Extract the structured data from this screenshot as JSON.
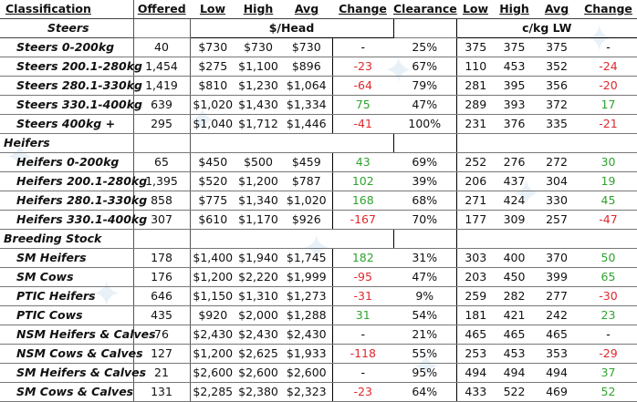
{
  "headers": [
    "Classification",
    "Offered",
    "Low",
    "High",
    "Avg",
    "Change",
    "Clearance",
    "Low",
    "High",
    "Avg",
    "Change"
  ],
  "units": {
    "head": "$/Head",
    "lw": "c/kg LW"
  },
  "sections": [
    {
      "title": "Steers",
      "rows": [
        {
          "name": "Steers 0-200kg",
          "offered": "40",
          "low": "$730",
          "high": "$730",
          "avg": "$730",
          "change": "-",
          "change_type": "dash",
          "clearance": "25%",
          "lw_low": "375",
          "lw_high": "375",
          "lw_avg": "375",
          "lw_change": "-",
          "lw_change_type": "dash"
        },
        {
          "name": "Steers 200.1-280kg",
          "offered": "1,454",
          "low": "$275",
          "high": "$1,100",
          "avg": "$896",
          "change": "-23",
          "change_type": "neg",
          "clearance": "67%",
          "lw_low": "110",
          "lw_high": "453",
          "lw_avg": "352",
          "lw_change": "-24",
          "lw_change_type": "neg"
        },
        {
          "name": "Steers 280.1-330kg",
          "offered": "1,419",
          "low": "$810",
          "high": "$1,230",
          "avg": "$1,064",
          "change": "-64",
          "change_type": "neg",
          "clearance": "79%",
          "lw_low": "281",
          "lw_high": "395",
          "lw_avg": "356",
          "lw_change": "-20",
          "lw_change_type": "neg"
        },
        {
          "name": "Steers 330.1-400kg",
          "offered": "639",
          "low": "$1,020",
          "high": "$1,430",
          "avg": "$1,334",
          "change": "75",
          "change_type": "pos",
          "clearance": "47%",
          "lw_low": "289",
          "lw_high": "393",
          "lw_avg": "372",
          "lw_change": "17",
          "lw_change_type": "pos"
        },
        {
          "name": "Steers 400kg +",
          "offered": "295",
          "low": "$1,040",
          "high": "$1,712",
          "avg": "$1,446",
          "change": "-41",
          "change_type": "neg",
          "clearance": "100%",
          "lw_low": "231",
          "lw_high": "376",
          "lw_avg": "335",
          "lw_change": "-21",
          "lw_change_type": "neg"
        }
      ]
    },
    {
      "title": "Heifers",
      "rows": [
        {
          "name": "Heifers 0-200kg",
          "offered": "65",
          "low": "$450",
          "high": "$500",
          "avg": "$459",
          "change": "43",
          "change_type": "pos",
          "clearance": "69%",
          "lw_low": "252",
          "lw_high": "276",
          "lw_avg": "272",
          "lw_change": "30",
          "lw_change_type": "pos"
        },
        {
          "name": "Heifers 200.1-280kg",
          "offered": "1,395",
          "low": "$520",
          "high": "$1,200",
          "avg": "$787",
          "change": "102",
          "change_type": "pos",
          "clearance": "39%",
          "lw_low": "206",
          "lw_high": "437",
          "lw_avg": "304",
          "lw_change": "19",
          "lw_change_type": "pos"
        },
        {
          "name": "Heifers 280.1-330kg",
          "offered": "858",
          "low": "$775",
          "high": "$1,340",
          "avg": "$1,020",
          "change": "168",
          "change_type": "pos",
          "clearance": "68%",
          "lw_low": "271",
          "lw_high": "424",
          "lw_avg": "330",
          "lw_change": "45",
          "lw_change_type": "pos"
        },
        {
          "name": "Heifers 330.1-400kg",
          "offered": "307",
          "low": "$610",
          "high": "$1,170",
          "avg": "$926",
          "change": "-167",
          "change_type": "neg",
          "clearance": "70%",
          "lw_low": "177",
          "lw_high": "309",
          "lw_avg": "257",
          "lw_change": "-47",
          "lw_change_type": "neg"
        }
      ]
    },
    {
      "title": "Breeding Stock",
      "rows": [
        {
          "name": "SM Heifers",
          "offered": "178",
          "low": "$1,400",
          "high": "$1,940",
          "avg": "$1,745",
          "change": "182",
          "change_type": "pos",
          "clearance": "31%",
          "lw_low": "303",
          "lw_high": "400",
          "lw_avg": "370",
          "lw_change": "50",
          "lw_change_type": "pos"
        },
        {
          "name": "SM Cows",
          "offered": "176",
          "low": "$1,200",
          "high": "$2,220",
          "avg": "$1,999",
          "change": "-95",
          "change_type": "neg",
          "clearance": "47%",
          "lw_low": "203",
          "lw_high": "450",
          "lw_avg": "399",
          "lw_change": "65",
          "lw_change_type": "pos"
        },
        {
          "name": "PTIC Heifers",
          "offered": "646",
          "low": "$1,150",
          "high": "$1,310",
          "avg": "$1,273",
          "change": "-31",
          "change_type": "neg",
          "clearance": "9%",
          "lw_low": "259",
          "lw_high": "282",
          "lw_avg": "277",
          "lw_change": "-30",
          "lw_change_type": "neg"
        },
        {
          "name": "PTIC Cows",
          "offered": "435",
          "low": "$920",
          "high": "$2,000",
          "avg": "$1,288",
          "change": "31",
          "change_type": "pos",
          "clearance": "54%",
          "lw_low": "181",
          "lw_high": "421",
          "lw_avg": "242",
          "lw_change": "23",
          "lw_change_type": "pos"
        },
        {
          "name": "NSM Heifers & Calves",
          "offered": "76",
          "low": "$2,430",
          "high": "$2,430",
          "avg": "$2,430",
          "change": "-",
          "change_type": "dash",
          "clearance": "21%",
          "lw_low": "465",
          "lw_high": "465",
          "lw_avg": "465",
          "lw_change": "-",
          "lw_change_type": "dash"
        },
        {
          "name": "NSM Cows & Calves",
          "offered": "127",
          "low": "$1,200",
          "high": "$2,625",
          "avg": "$1,933",
          "change": "-118",
          "change_type": "neg",
          "clearance": "55%",
          "lw_low": "253",
          "lw_high": "453",
          "lw_avg": "353",
          "lw_change": "-29",
          "lw_change_type": "neg"
        },
        {
          "name": "SM Heifers & Calves",
          "offered": "21",
          "low": "$2,600",
          "high": "$2,600",
          "avg": "$2,600",
          "change": "-",
          "change_type": "dash",
          "clearance": "95%",
          "lw_low": "494",
          "lw_high": "494",
          "lw_avg": "494",
          "lw_change": "37",
          "lw_change_type": "pos"
        },
        {
          "name": "SM Cows & Calves",
          "offered": "131",
          "low": "$2,285",
          "high": "$2,380",
          "avg": "$2,323",
          "change": "-23",
          "change_type": "neg",
          "clearance": "64%",
          "lw_low": "433",
          "lw_high": "522",
          "lw_avg": "469",
          "lw_change": "52",
          "lw_change_type": "pos"
        }
      ]
    }
  ],
  "colors": {
    "positive": "#2fa32f",
    "negative": "#e0282d",
    "watermark": "#d8e7f3"
  }
}
